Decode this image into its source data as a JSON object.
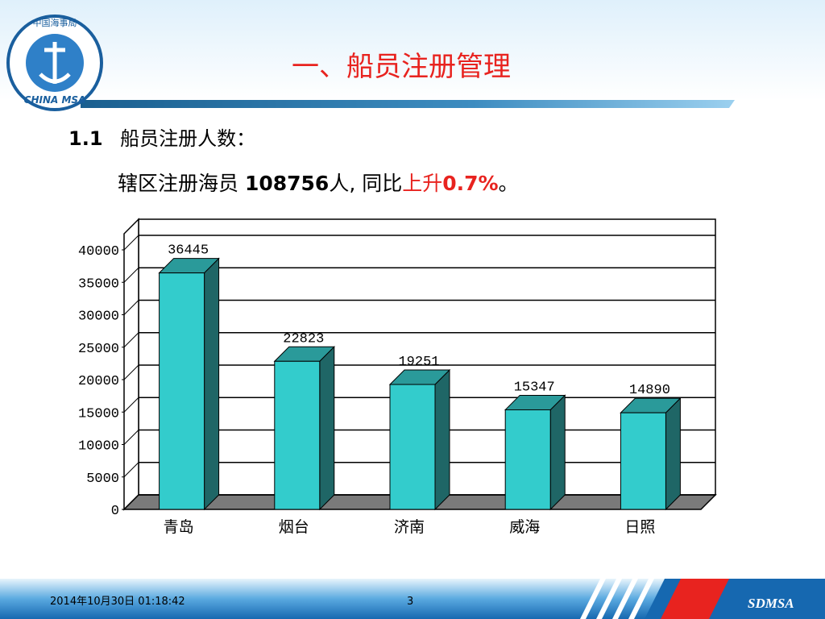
{
  "slide": {
    "title": "一、船员注册管理",
    "section_number": "1.1",
    "section_title": "船员注册人数：",
    "line_prefix": "辖区注册海员 ",
    "line_total": "108756",
    "line_middle": "人, 同比",
    "line_trend": "上升",
    "line_rate": "0.7%",
    "line_end": "。",
    "logo_top": "中国海事局",
    "logo_bottom": "CHINA MSA",
    "footer_date": "2014年10月30日  01:18:42",
    "footer_page": "3",
    "footer_brand": "SDMSA"
  },
  "chart_data": {
    "type": "bar3d",
    "categories": [
      "青岛",
      "烟台",
      "济南",
      "威海",
      "日照"
    ],
    "values": [
      36445,
      22823,
      19251,
      15347,
      14890
    ],
    "color": "#33cccc",
    "ylim": [
      0,
      40000
    ],
    "yticks": [
      0,
      5000,
      10000,
      15000,
      20000,
      25000,
      30000,
      35000,
      40000
    ],
    "grid": true
  }
}
